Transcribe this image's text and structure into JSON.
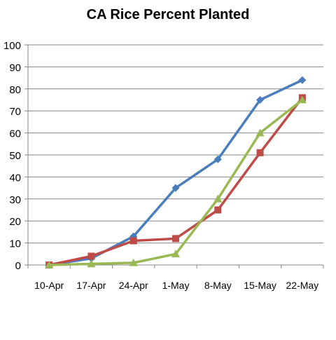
{
  "chart_data": {
    "type": "line",
    "title": "CA Rice Percent Planted",
    "xlabel": "",
    "ylabel": "",
    "categories": [
      "10-Apr",
      "17-Apr",
      "24-Apr",
      "1-May",
      "8-May",
      "15-May",
      "22-May"
    ],
    "ylim": [
      0,
      100
    ],
    "yticks": [
      0,
      10,
      20,
      30,
      40,
      50,
      60,
      70,
      80,
      90,
      100
    ],
    "grid": true,
    "legend": "none",
    "series": [
      {
        "values": [
          0,
          3,
          13,
          35,
          48,
          75,
          84
        ],
        "color": "#4A7EBB",
        "marker": "diamond"
      },
      {
        "values": [
          0,
          4,
          11,
          12,
          25,
          51,
          76
        ],
        "color": "#BE4B48",
        "marker": "square"
      },
      {
        "values": [
          0,
          0.5,
          1,
          5,
          30,
          60,
          75
        ],
        "color": "#98B954",
        "marker": "triangle"
      }
    ]
  }
}
